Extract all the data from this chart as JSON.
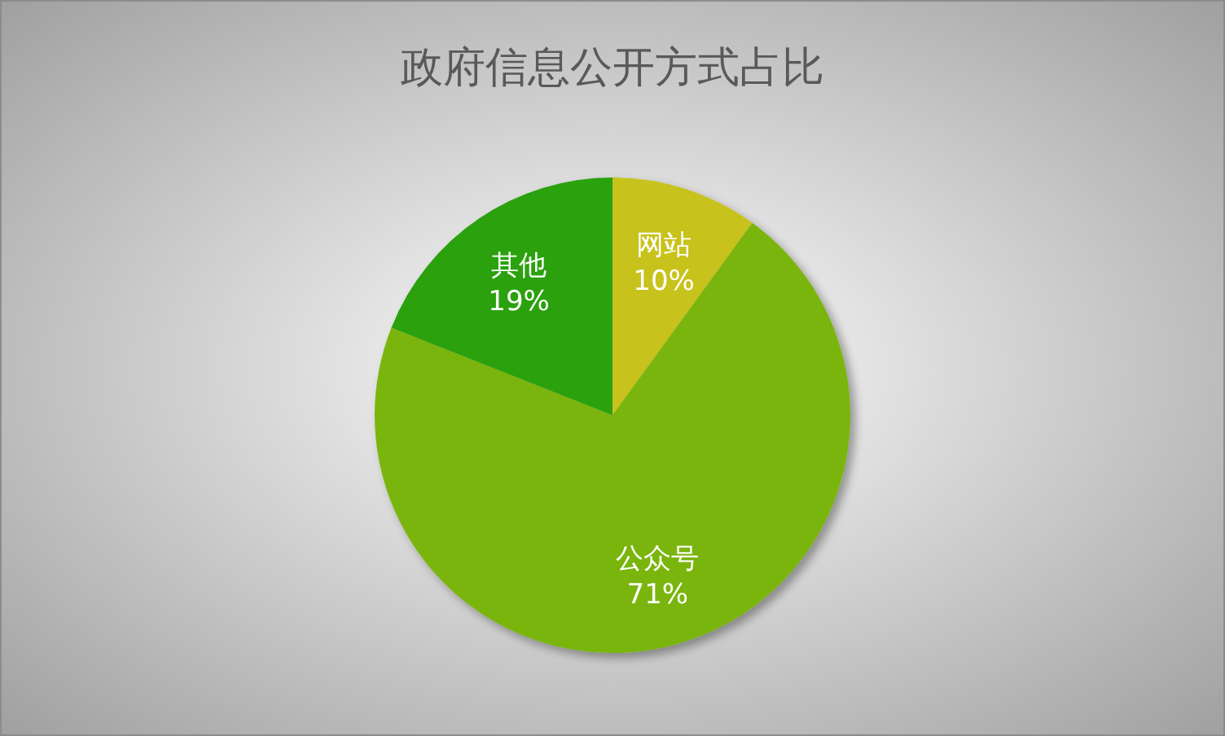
{
  "chart_data": {
    "type": "pie",
    "title": "政府信息公开方式占比",
    "categories": [
      "网站",
      "公众号",
      "其他"
    ],
    "values": [
      10,
      71,
      19
    ],
    "value_labels": [
      "10%",
      "71%",
      "19%"
    ],
    "colors": [
      "#c8c21a",
      "#7ab510",
      "#2aa10f"
    ]
  }
}
